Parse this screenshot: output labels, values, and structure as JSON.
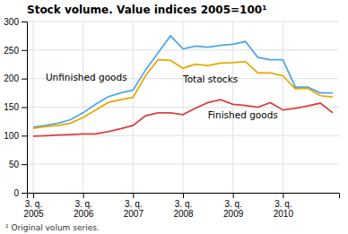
{
  "chart_data": {
    "type": "line",
    "title": "Stock volume. Value indices 2005=100¹",
    "footnote": "¹ Original volum series.",
    "categories": [
      "3. q.\n2005",
      null,
      null,
      null,
      "3. q.\n2006",
      null,
      null,
      null,
      "3. q.\n2007",
      null,
      null,
      null,
      "3. q.\n2008",
      null,
      null,
      null,
      "3. q.\n2009",
      null,
      null,
      null,
      "3. q.\n2010",
      null,
      null,
      null,
      null
    ],
    "series": [
      {
        "name": "Unfinished goods",
        "color": "#4da6e8",
        "values": [
          115,
          118,
          122,
          128,
          140,
          155,
          168,
          175,
          180,
          215,
          245,
          275,
          252,
          257,
          255,
          258,
          260,
          265,
          237,
          233,
          233,
          185,
          185,
          175,
          175
        ]
      },
      {
        "name": "Total stocks",
        "color": "#e8a800",
        "values": [
          113,
          116,
          118,
          122,
          132,
          145,
          158,
          163,
          167,
          205,
          233,
          232,
          218,
          225,
          223,
          227,
          228,
          230,
          210,
          210,
          205,
          182,
          183,
          170,
          168
        ]
      },
      {
        "name": "Finished goods",
        "color": "#d94040",
        "values": [
          99,
          100,
          101,
          102,
          103,
          103,
          107,
          112,
          118,
          135,
          140,
          140,
          137,
          148,
          158,
          163,
          155,
          153,
          150,
          158,
          145,
          148,
          152,
          157,
          140
        ]
      }
    ],
    "ylim": [
      0,
      300
    ],
    "yticks": [
      0,
      50,
      100,
      150,
      200,
      250,
      300
    ],
    "grid": true
  }
}
